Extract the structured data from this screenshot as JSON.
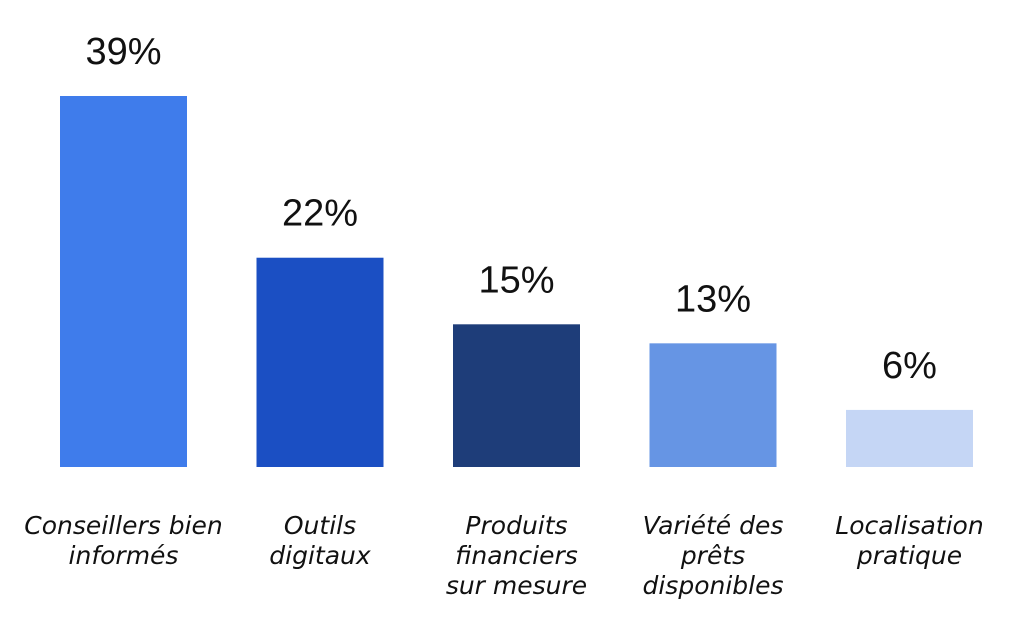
{
  "chart_data": {
    "type": "bar",
    "title": "",
    "xlabel": "",
    "ylabel": "",
    "categories": [
      "Conseillers bien informés",
      "Outils digitaux",
      "Produits financiers sur mesure",
      "Variété des prêts disponibles",
      "Localisation pratique"
    ],
    "category_lines": [
      [
        "Conseillers bien",
        "informés"
      ],
      [
        "Outils",
        "digitaux"
      ],
      [
        "Produits",
        "financiers",
        "sur mesure"
      ],
      [
        "Variété des",
        "prêts",
        "disponibles"
      ],
      [
        "Localisation",
        "pratique"
      ]
    ],
    "values": [
      39,
      22,
      15,
      13,
      6
    ],
    "value_labels": [
      "39%",
      "22%",
      "15%",
      "13%",
      "6%"
    ],
    "colors": [
      "#3f7ceb",
      "#1b4fc3",
      "#1e3d79",
      "#6695e4",
      "#c5d6f5"
    ],
    "ylim": [
      0,
      39
    ],
    "grid": false,
    "legend": "none"
  }
}
